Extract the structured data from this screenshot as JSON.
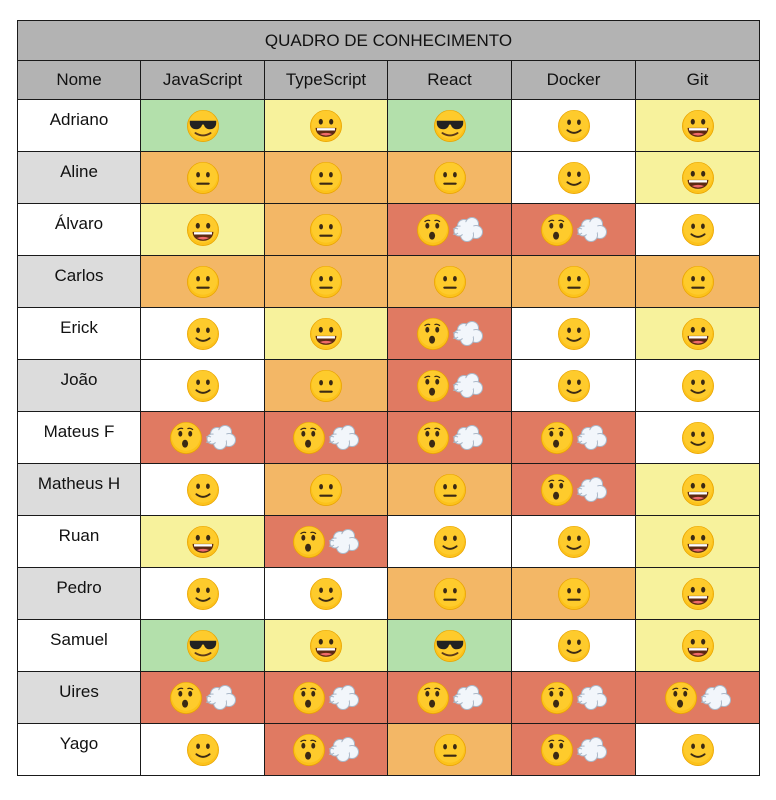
{
  "table": {
    "title": "QUADRO DE CONHECIMENTO",
    "headers": [
      "Nome",
      "JavaScript",
      "TypeScript",
      "React",
      "Docker",
      "Git"
    ],
    "rows": [
      {
        "name": "Adriano",
        "levels": [
          "expert",
          "good",
          "expert",
          "basic",
          "good"
        ]
      },
      {
        "name": "Aline",
        "levels": [
          "neutral",
          "neutral",
          "neutral",
          "basic",
          "good"
        ]
      },
      {
        "name": "Álvaro",
        "levels": [
          "good",
          "neutral",
          "none",
          "none",
          "basic"
        ]
      },
      {
        "name": "Carlos",
        "levels": [
          "neutral",
          "neutral",
          "neutral",
          "neutral",
          "neutral"
        ]
      },
      {
        "name": "Erick",
        "levels": [
          "basic",
          "good",
          "none",
          "basic",
          "good"
        ]
      },
      {
        "name": "João",
        "levels": [
          "basic",
          "neutral",
          "none",
          "basic",
          "basic"
        ]
      },
      {
        "name": "Mateus F",
        "levels": [
          "none",
          "none",
          "none",
          "none",
          "basic"
        ]
      },
      {
        "name": "Matheus H",
        "levels": [
          "basic",
          "neutral",
          "neutral",
          "none",
          "good"
        ]
      },
      {
        "name": "Ruan",
        "levels": [
          "good",
          "none",
          "basic",
          "basic",
          "good"
        ]
      },
      {
        "name": "Pedro",
        "levels": [
          "basic",
          "basic",
          "neutral",
          "neutral",
          "good"
        ]
      },
      {
        "name": "Samuel",
        "levels": [
          "expert",
          "good",
          "expert",
          "basic",
          "good"
        ]
      },
      {
        "name": "Uires",
        "levels": [
          "none",
          "none",
          "none",
          "none",
          "none"
        ]
      },
      {
        "name": "Yago",
        "levels": [
          "basic",
          "none",
          "neutral",
          "none",
          "basic"
        ]
      }
    ]
  },
  "levels": {
    "expert": {
      "icon": "sunglasses-face-icon",
      "color": "#b3e0ab"
    },
    "good": {
      "icon": "grinning-face-icon",
      "color": "#f7f29c"
    },
    "basic": {
      "icon": "slightly-smiling-face-icon",
      "color": "#ffffff"
    },
    "neutral": {
      "icon": "neutral-face-icon",
      "color": "#f3b766"
    },
    "none": {
      "icon": "face-exhaling-icon",
      "color": "#e07a62"
    }
  }
}
